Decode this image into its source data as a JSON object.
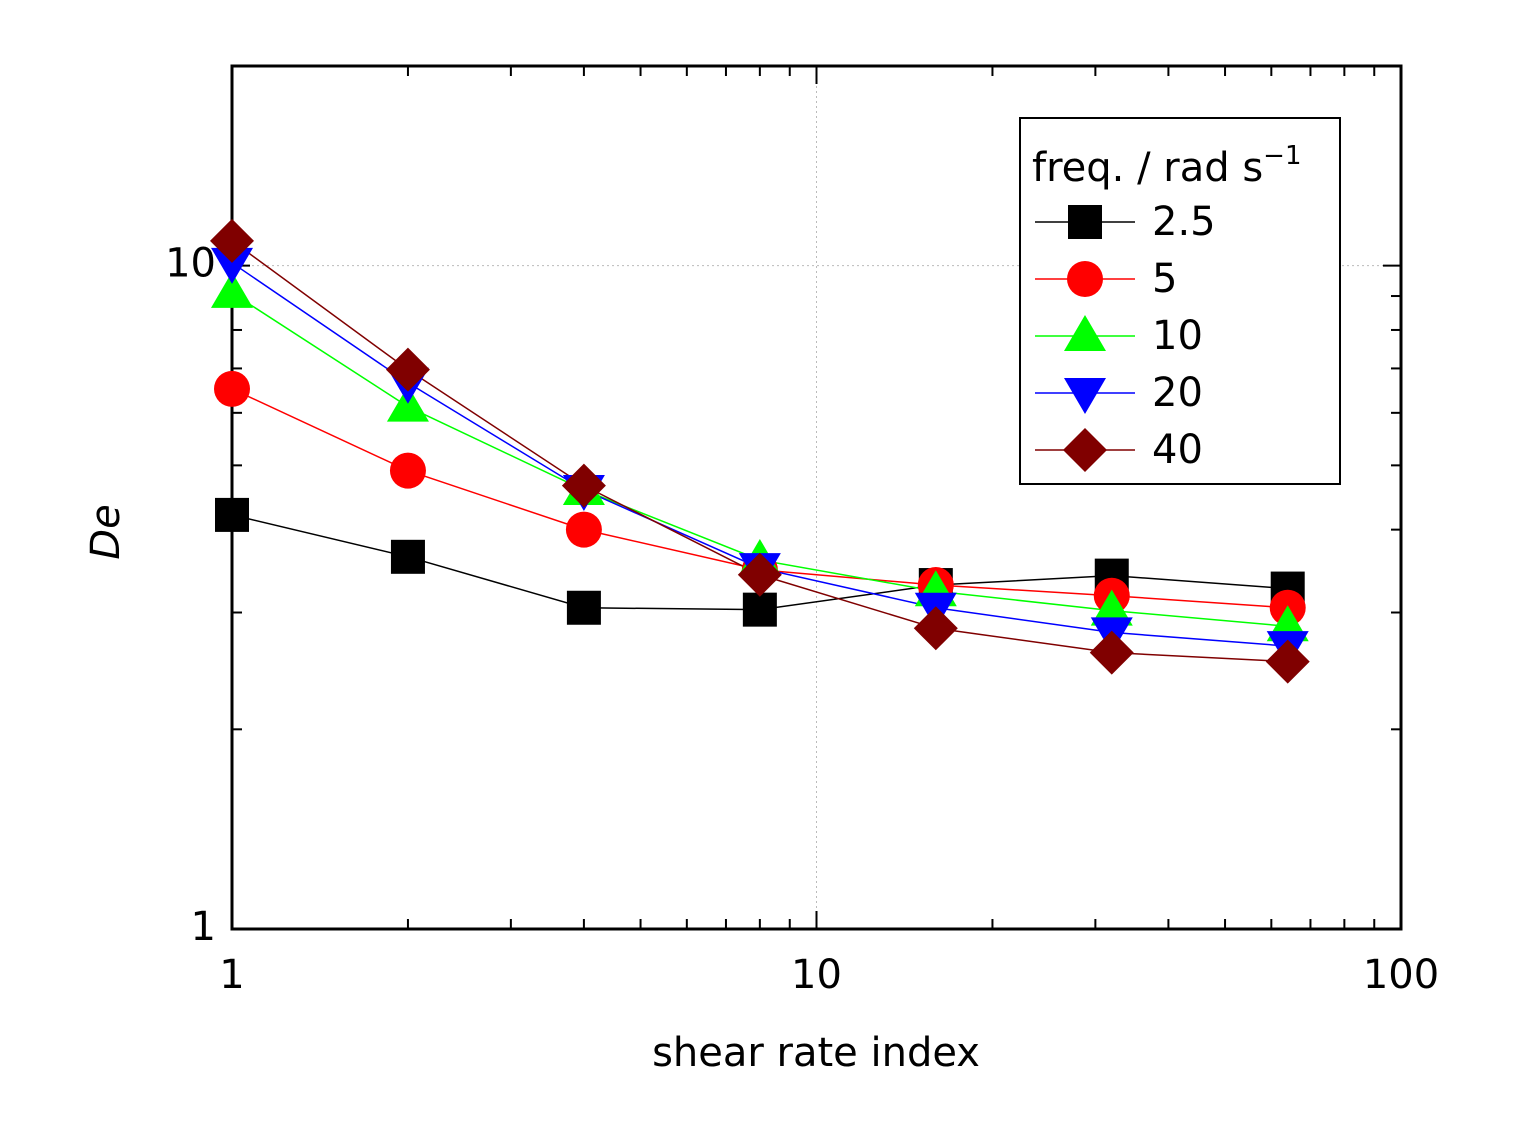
{
  "chart_data": {
    "type": "line",
    "x_label": "shear rate index",
    "y_label": "De",
    "legend_title": "freq. / rad s",
    "legend_title_sup": "−1",
    "x": [
      1,
      2,
      4,
      8,
      16,
      32,
      64
    ],
    "xlim": [
      1,
      100
    ],
    "ylim": [
      1,
      20
    ],
    "xticks": [
      1,
      10,
      100
    ],
    "yticks": [
      1,
      10
    ],
    "x_minor_ticks": [
      2,
      3,
      4,
      5,
      6,
      7,
      8,
      9,
      20,
      30,
      40,
      50,
      60,
      70,
      80,
      90
    ],
    "y_minor_ticks": [
      2,
      3,
      4,
      5,
      6,
      7,
      8,
      9,
      20
    ],
    "x_log": true,
    "y_log": true,
    "grid": true,
    "legend_position": "upper right",
    "series": [
      {
        "name": "2.5",
        "color": "#000000",
        "marker": "square",
        "values": [
          4.21,
          3.64,
          3.05,
          3.03,
          3.3,
          3.41,
          3.26
        ]
      },
      {
        "name": "5",
        "color": "#ff0000",
        "marker": "circle",
        "values": [
          6.52,
          4.91,
          4.0,
          3.48,
          3.3,
          3.18,
          3.05
        ]
      },
      {
        "name": "10",
        "color": "#00ff00",
        "marker": "triangle-up",
        "values": [
          9.1,
          6.13,
          4.59,
          3.6,
          3.23,
          3.02,
          2.86
        ]
      },
      {
        "name": "20",
        "color": "#0000ff",
        "marker": "triangle-down",
        "values": [
          10.1,
          6.66,
          4.59,
          3.5,
          3.05,
          2.8,
          2.67
        ]
      },
      {
        "name": "40",
        "color": "#800000",
        "marker": "diamond",
        "values": [
          10.9,
          6.97,
          4.66,
          3.42,
          2.84,
          2.61,
          2.53
        ]
      }
    ]
  }
}
